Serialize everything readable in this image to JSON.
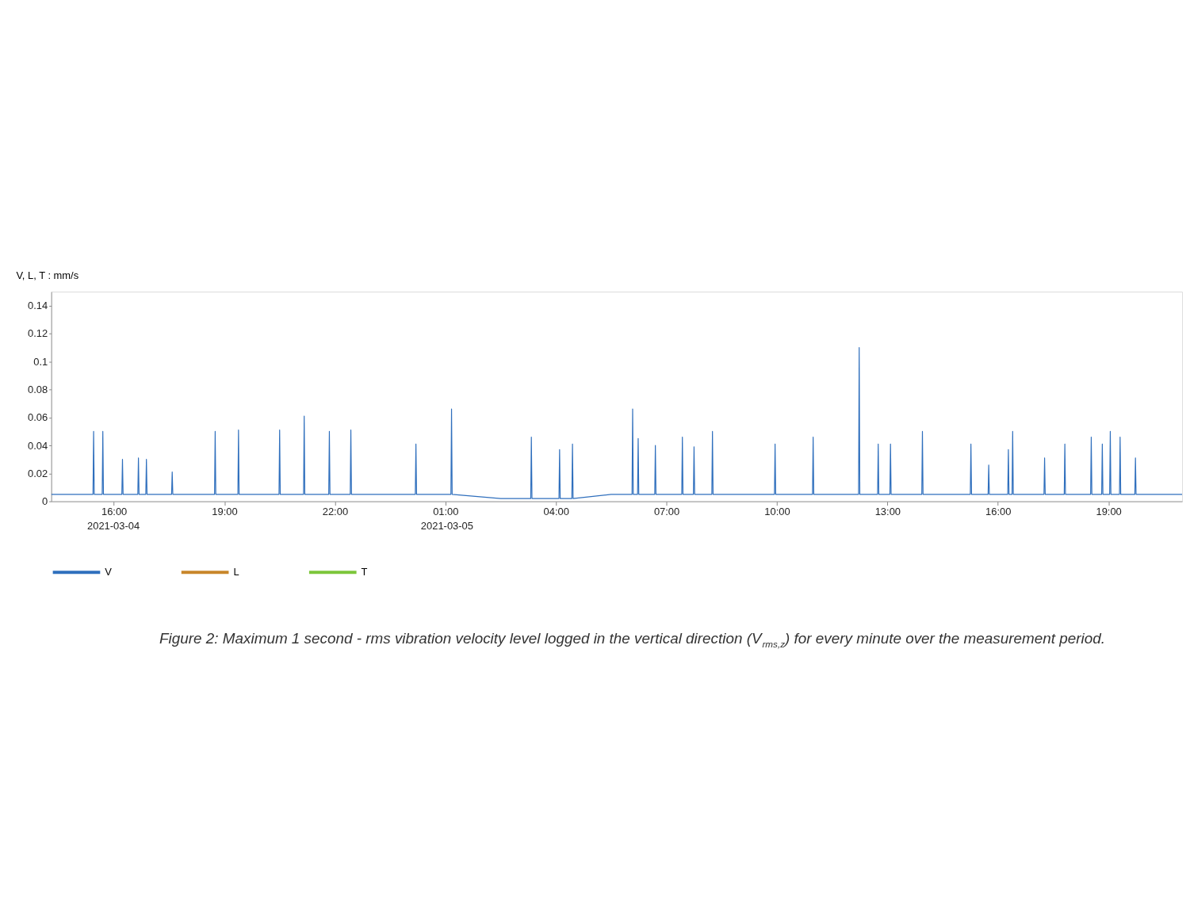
{
  "chart_data": {
    "type": "line",
    "ylabel": "V, L, T : mm/s",
    "annotations": [
      "2021-03-04",
      "2021-03-05",
      "Figure 2: Maximum 1 second - rms vibration velocity level logged in the vertical direction (V$_{rms,z}$) for every minute over the measurement period."
    ],
    "x": [
      "2021-03-04T14:18",
      "2021-03-04T15:26",
      "2021-03-04T15:27",
      "2021-03-04T15:28",
      "2021-03-04T15:41",
      "2021-03-04T15:42",
      "2021-03-04T15:43",
      "2021-03-04T16:13",
      "2021-03-04T16:14",
      "2021-03-04T16:15",
      "2021-03-04T16:39",
      "2021-03-04T16:40",
      "2021-03-04T16:41",
      "2021-03-04T16:52",
      "2021-03-04T16:53",
      "2021-03-04T16:54",
      "2021-03-04T17:34",
      "2021-03-04T17:35",
      "2021-03-04T17:36",
      "2021-03-04T18:44",
      "2021-03-04T18:45",
      "2021-03-04T18:46",
      "2021-03-04T19:22",
      "2021-03-04T19:23",
      "2021-03-04T19:24",
      "2021-03-04T20:29",
      "2021-03-04T20:30",
      "2021-03-04T20:31",
      "2021-03-04T21:09",
      "2021-03-04T21:10",
      "2021-03-04T21:11",
      "2021-03-04T21:50",
      "2021-03-04T21:51",
      "2021-03-04T21:52",
      "2021-03-04T22:25",
      "2021-03-04T22:26",
      "2021-03-04T22:27",
      "2021-03-05T00:11",
      "2021-03-05T00:12",
      "2021-03-05T00:13",
      "2021-03-05T01:09",
      "2021-03-05T01:10",
      "2021-03-05T01:11",
      "2021-03-05T02:30",
      "2021-03-05T03:19",
      "2021-03-05T03:20",
      "2021-03-05T03:21",
      "2021-03-05T04:05",
      "2021-03-05T04:06",
      "2021-03-05T04:07",
      "2021-03-05T04:26",
      "2021-03-05T04:27",
      "2021-03-05T04:28",
      "2021-03-05T05:30",
      "2021-03-05T06:04",
      "2021-03-05T06:05",
      "2021-03-05T06:06",
      "2021-03-05T06:13",
      "2021-03-05T06:14",
      "2021-03-05T06:15",
      "2021-03-05T06:41",
      "2021-03-05T06:42",
      "2021-03-05T06:43",
      "2021-03-05T07:25",
      "2021-03-05T07:26",
      "2021-03-05T07:27",
      "2021-03-05T07:44",
      "2021-03-05T07:45",
      "2021-03-05T07:46",
      "2021-03-05T08:14",
      "2021-03-05T08:15",
      "2021-03-05T08:16",
      "2021-03-05T09:56",
      "2021-03-05T09:57",
      "2021-03-05T09:58",
      "2021-03-05T10:58",
      "2021-03-05T10:59",
      "2021-03-05T11:00",
      "2021-03-05T12:13",
      "2021-03-05T12:14",
      "2021-03-05T12:15",
      "2021-03-05T12:44",
      "2021-03-05T12:45",
      "2021-03-05T12:46",
      "2021-03-05T13:04",
      "2021-03-05T13:05",
      "2021-03-05T13:06",
      "2021-03-05T13:56",
      "2021-03-05T13:57",
      "2021-03-05T13:58",
      "2021-03-05T15:15",
      "2021-03-05T15:16",
      "2021-03-05T15:17",
      "2021-03-05T15:44",
      "2021-03-05T15:45",
      "2021-03-05T15:46",
      "2021-03-05T16:16",
      "2021-03-05T16:17",
      "2021-03-05T16:18",
      "2021-03-05T16:23",
      "2021-03-05T16:24",
      "2021-03-05T16:25",
      "2021-03-05T17:15",
      "2021-03-05T17:16",
      "2021-03-05T17:17",
      "2021-03-05T17:48",
      "2021-03-05T17:49",
      "2021-03-05T17:50",
      "2021-03-05T18:31",
      "2021-03-05T18:32",
      "2021-03-05T18:33",
      "2021-03-05T18:49",
      "2021-03-05T18:50",
      "2021-03-05T18:51",
      "2021-03-05T19:02",
      "2021-03-05T19:03",
      "2021-03-05T19:04",
      "2021-03-05T19:18",
      "2021-03-05T19:19",
      "2021-03-05T19:20",
      "2021-03-05T19:43",
      "2021-03-05T19:44",
      "2021-03-05T19:45",
      "2021-03-05T21:00"
    ],
    "series": [
      {
        "name": "V",
        "color": "#2f6fbd",
        "values": [
          0.005,
          0.005,
          0.05,
          0.005,
          0.005,
          0.05,
          0.005,
          0.005,
          0.03,
          0.005,
          0.005,
          0.031,
          0.005,
          0.005,
          0.03,
          0.005,
          0.005,
          0.021,
          0.005,
          0.005,
          0.05,
          0.005,
          0.005,
          0.051,
          0.005,
          0.005,
          0.051,
          0.005,
          0.005,
          0.061,
          0.005,
          0.005,
          0.05,
          0.005,
          0.005,
          0.051,
          0.005,
          0.005,
          0.041,
          0.005,
          0.005,
          0.066,
          0.005,
          0.002,
          0.002,
          0.046,
          0.002,
          0.002,
          0.037,
          0.002,
          0.002,
          0.041,
          0.002,
          0.005,
          0.005,
          0.066,
          0.005,
          0.005,
          0.045,
          0.005,
          0.005,
          0.04,
          0.005,
          0.005,
          0.046,
          0.005,
          0.005,
          0.039,
          0.005,
          0.005,
          0.05,
          0.005,
          0.005,
          0.041,
          0.005,
          0.005,
          0.046,
          0.005,
          0.005,
          0.11,
          0.005,
          0.005,
          0.041,
          0.005,
          0.005,
          0.041,
          0.005,
          0.005,
          0.05,
          0.005,
          0.005,
          0.041,
          0.005,
          0.005,
          0.026,
          0.005,
          0.005,
          0.037,
          0.005,
          0.005,
          0.05,
          0.005,
          0.005,
          0.031,
          0.005,
          0.005,
          0.041,
          0.005,
          0.005,
          0.046,
          0.005,
          0.005,
          0.041,
          0.005,
          0.005,
          0.05,
          0.005,
          0.005,
          0.046,
          0.005,
          0.005,
          0.031,
          0.005,
          0.005
        ]
      },
      {
        "name": "L",
        "color": "#c8862a",
        "values": [
          null,
          null,
          null,
          null,
          null,
          null,
          null,
          null,
          null,
          null,
          null,
          null,
          null,
          null,
          null,
          null,
          null,
          null,
          null,
          null,
          null,
          null,
          null,
          null,
          null,
          null,
          null,
          null,
          null,
          null,
          null,
          null,
          null,
          null,
          null,
          null,
          null,
          null,
          null,
          null,
          null,
          null,
          null,
          null,
          null,
          null,
          null,
          null,
          null,
          null,
          null,
          null,
          null,
          null,
          null,
          null,
          null,
          null,
          null,
          null,
          null,
          null,
          null,
          null,
          null,
          null,
          null,
          null,
          null,
          null,
          null,
          null,
          null,
          null,
          null,
          null,
          null,
          null,
          null,
          null,
          null,
          null,
          null,
          null,
          null,
          null,
          null,
          null,
          null,
          null,
          null,
          null,
          null,
          null,
          null,
          null,
          null,
          null,
          null,
          null,
          null,
          null,
          null,
          null,
          null,
          null,
          null,
          null,
          null,
          null,
          null,
          null,
          null,
          null,
          null,
          null,
          null,
          null,
          null,
          null,
          null,
          null,
          null,
          null
        ]
      },
      {
        "name": "T",
        "color": "#7cc63a",
        "values": [
          null,
          null,
          null,
          null,
          null,
          null,
          null,
          null,
          null,
          null,
          null,
          null,
          null,
          null,
          null,
          null,
          null,
          null,
          null,
          null,
          null,
          null,
          null,
          null,
          null,
          null,
          null,
          null,
          null,
          null,
          null,
          null,
          null,
          null,
          null,
          null,
          null,
          null,
          null,
          null,
          null,
          null,
          null,
          null,
          null,
          null,
          null,
          null,
          null,
          null,
          null,
          null,
          null,
          null,
          null,
          null,
          null,
          null,
          null,
          null,
          null,
          null,
          null,
          null,
          null,
          null,
          null,
          null,
          null,
          null,
          null,
          null,
          null,
          null,
          null,
          null,
          null,
          null,
          null,
          null,
          null,
          null,
          null,
          null,
          null,
          null,
          null,
          null,
          null,
          null,
          null,
          null,
          null,
          null,
          null,
          null,
          null,
          null,
          null,
          null,
          null,
          null,
          null,
          null,
          null,
          null,
          null,
          null,
          null,
          null,
          null,
          null,
          null,
          null,
          null,
          null,
          null,
          null,
          null,
          null,
          null,
          null,
          null,
          null
        ]
      }
    ],
    "xlim": [
      "2021-03-04T14:18",
      "2021-03-05T21:00"
    ],
    "xticks": [
      {
        "value": "2021-03-04T16:00",
        "label": "16:00"
      },
      {
        "value": "2021-03-04T19:00",
        "label": "19:00"
      },
      {
        "value": "2021-03-04T22:00",
        "label": "22:00"
      },
      {
        "value": "2021-03-05T01:00",
        "label": "01:00"
      },
      {
        "value": "2021-03-05T04:00",
        "label": "04:00"
      },
      {
        "value": "2021-03-05T07:00",
        "label": "07:00"
      },
      {
        "value": "2021-03-05T10:00",
        "label": "10:00"
      },
      {
        "value": "2021-03-05T13:00",
        "label": "13:00"
      },
      {
        "value": "2021-03-05T16:00",
        "label": "16:00"
      },
      {
        "value": "2021-03-05T19:00",
        "label": "19:00"
      }
    ],
    "ylim": [
      0,
      0.15
    ],
    "yticks": [
      0,
      0.02,
      0.04,
      0.06,
      0.08,
      0.1,
      0.12,
      0.14
    ],
    "grid": false,
    "legend": "bottom",
    "line_style": "solid"
  }
}
